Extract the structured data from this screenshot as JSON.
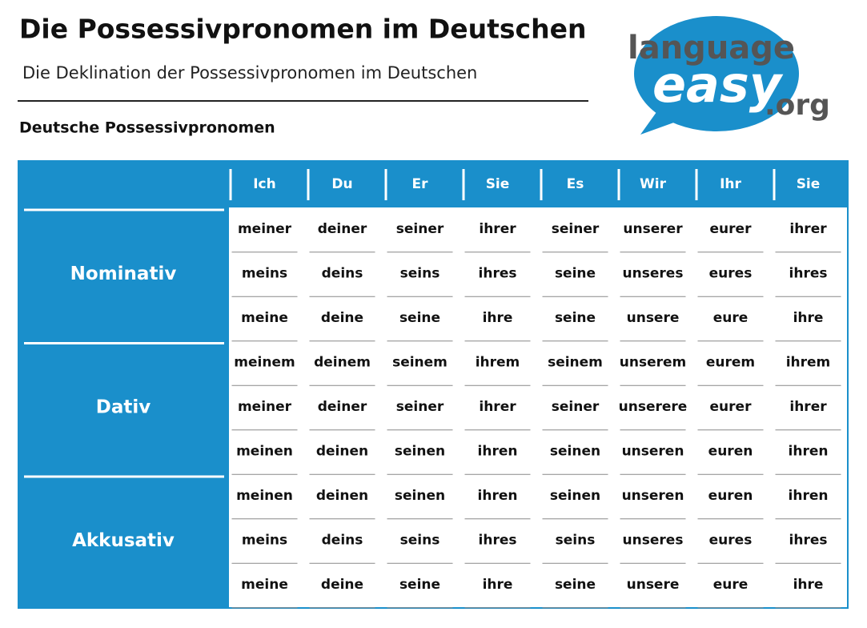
{
  "header": {
    "title": "Die Possessivpronomen im Deutschen",
    "subtitle": "Die Deklination der Possessivpronomen im Deutschen"
  },
  "section_title": "Deutsche Possessivpronomen",
  "logo": {
    "top": "language",
    "middle": "easy",
    "suffix": ".org"
  },
  "table": {
    "columns": [
      "Ich",
      "Du",
      "Er",
      "Sie",
      "Es",
      "Wir",
      "Ihr",
      "Sie"
    ],
    "groups": [
      {
        "name": "Nominativ",
        "rows": [
          [
            "meiner",
            "deiner",
            "seiner",
            "ihrer",
            "seiner",
            "unserer",
            "eurer",
            "ihrer"
          ],
          [
            "meins",
            "deins",
            "seins",
            "ihres",
            "seine",
            "unseres",
            "eures",
            "ihres"
          ],
          [
            "meine",
            "deine",
            "seine",
            "ihre",
            "seine",
            "unsere",
            "eure",
            "ihre"
          ]
        ]
      },
      {
        "name": "Dativ",
        "rows": [
          [
            "meinem",
            "deinem",
            "seinem",
            "ihrem",
            "seinem",
            "unserem",
            "eurem",
            "ihrem"
          ],
          [
            "meiner",
            "deiner",
            "seiner",
            "ihrer",
            "seiner",
            "unserere",
            "eurer",
            "ihrer"
          ],
          [
            "meinen",
            "deinen",
            "seinen",
            "ihren",
            "seinen",
            "unseren",
            "euren",
            "ihren"
          ]
        ]
      },
      {
        "name": "Akkusativ",
        "rows": [
          [
            "meinen",
            "deinen",
            "seinen",
            "ihren",
            "seinen",
            "unseren",
            "euren",
            "ihren"
          ],
          [
            "meins",
            "deins",
            "seins",
            "ihres",
            "seins",
            "unseres",
            "eures",
            "ihres"
          ],
          [
            "meine",
            "deine",
            "seine",
            "ihre",
            "seine",
            "unsere",
            "eure",
            "ihre"
          ]
        ]
      }
    ]
  }
}
